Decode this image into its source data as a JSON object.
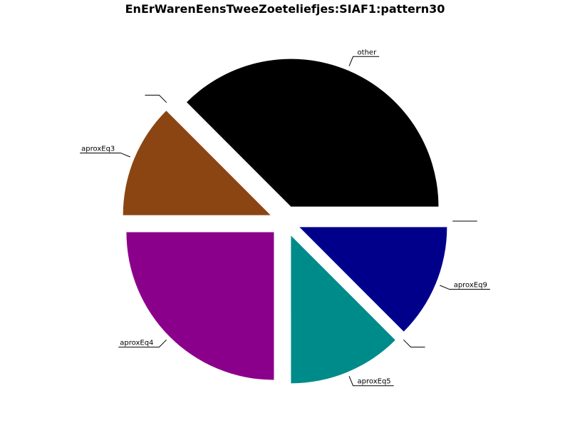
{
  "chart_data": {
    "type": "pie",
    "title": "EnErWarenEensTweeZoeteliefjes:SIAF1:pattern30",
    "slices": [
      {
        "label": "other",
        "value": 37.5,
        "color": "#000000"
      },
      {
        "label": "",
        "value": 0,
        "color": "#ffffff"
      },
      {
        "label": "aproxEq3",
        "value": 12.5,
        "color": "#8b4513"
      },
      {
        "label": "aproxEq4",
        "value": 25.0,
        "color": "#8b008b"
      },
      {
        "label": "aproxEq5",
        "value": 12.5,
        "color": "#008b8b"
      },
      {
        "label": "",
        "value": 0,
        "color": "#ffffff"
      },
      {
        "label": "aproxEq9",
        "value": 12.5,
        "color": "#00008b"
      },
      {
        "label": "",
        "value": 0,
        "color": "#ffffff"
      }
    ],
    "start_angle_deg": 0,
    "direction": "counterclockwise",
    "exploded": true,
    "legend": "none"
  }
}
